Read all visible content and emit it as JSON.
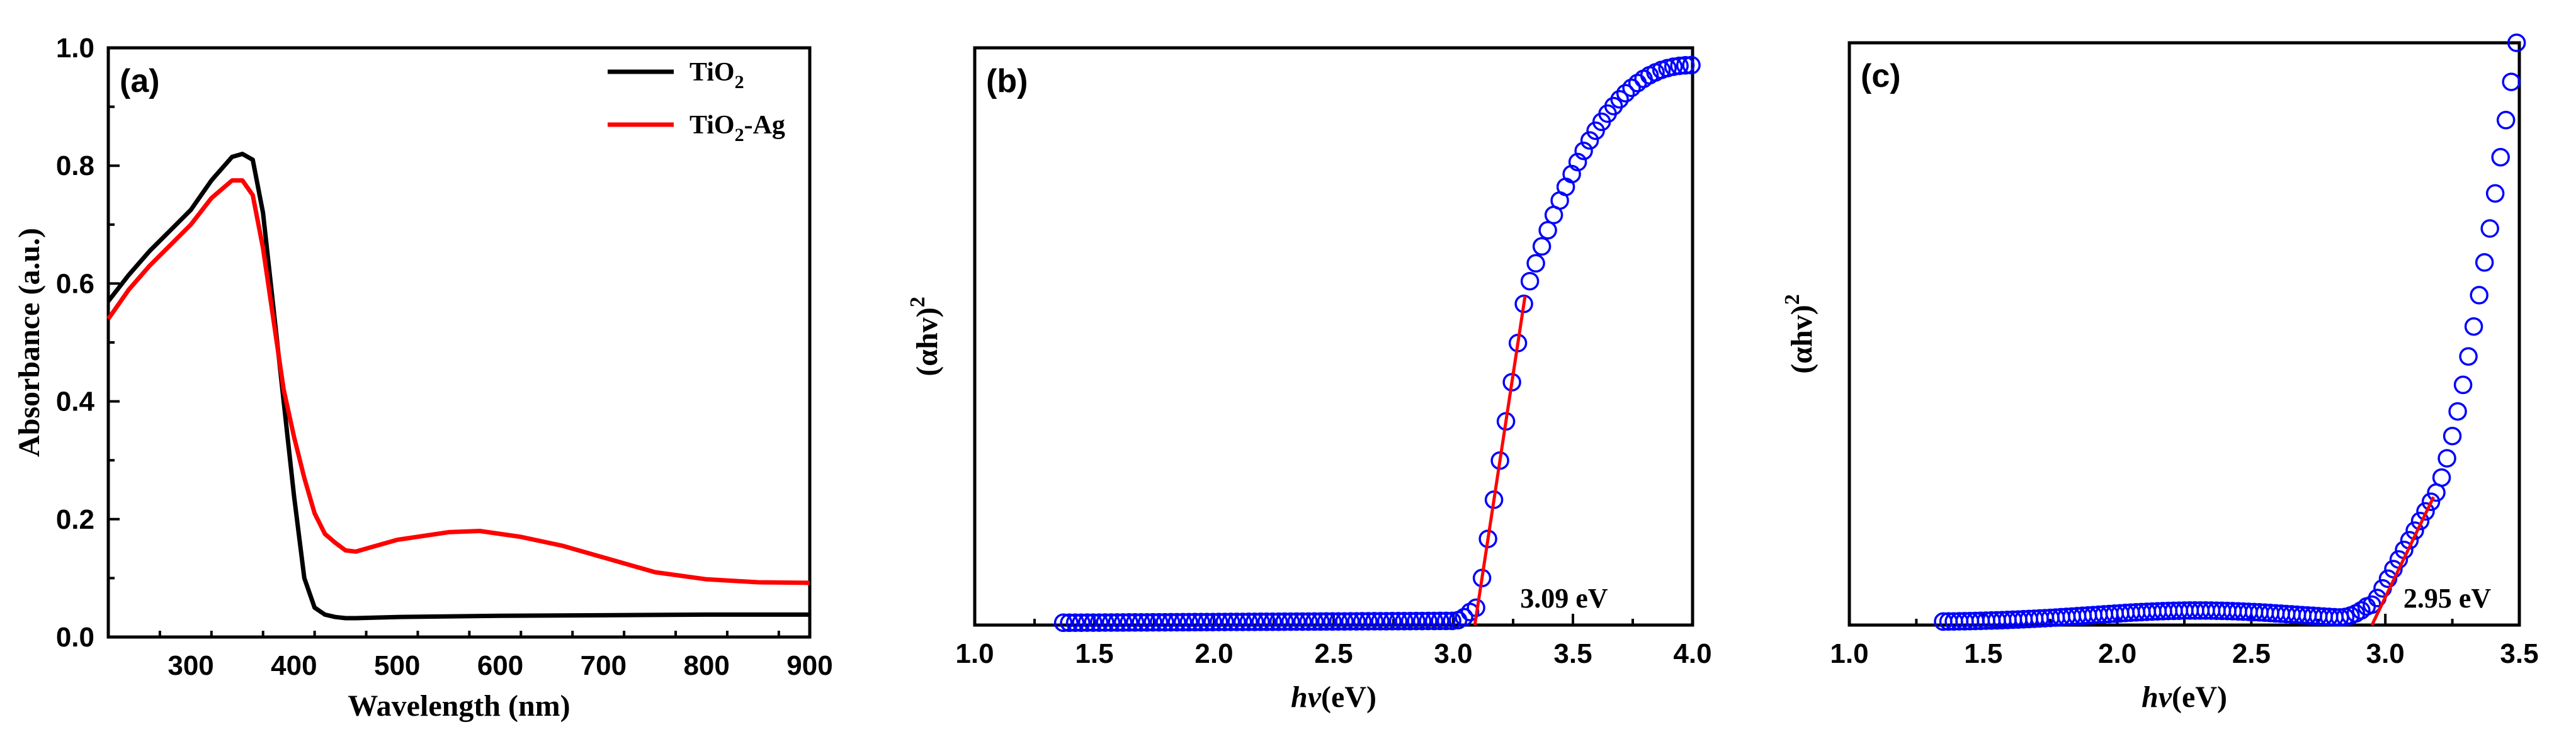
{
  "chart_data": [
    {
      "type": "line",
      "panel_label": "(a)",
      "xlabel": "Wavelength (nm)",
      "ylabel": "Absorbance (a.u.)",
      "xlim": [
        220,
        900
      ],
      "ylim": [
        0.0,
        1.0
      ],
      "xticks": [
        300,
        400,
        500,
        600,
        700,
        800,
        900
      ],
      "xtick_labels": [
        "300",
        "400",
        "500",
        "600",
        "700",
        "800",
        "900"
      ],
      "yticks": [
        0.0,
        0.2,
        0.4,
        0.6,
        0.8,
        1.0
      ],
      "ytick_labels": [
        "0.0",
        "0.2",
        "0.4",
        "0.6",
        "0.8",
        "1.0"
      ],
      "legend_position": "top-right",
      "series": [
        {
          "name": "TiO2",
          "legend_main": "TiO",
          "legend_sub": "2",
          "legend_suffix": "",
          "color": "#000000",
          "x": [
            220,
            240,
            260,
            280,
            300,
            320,
            340,
            350,
            360,
            370,
            380,
            390,
            400,
            410,
            420,
            430,
            440,
            450,
            460,
            480,
            500,
            600,
            700,
            800,
            900
          ],
          "y": [
            0.57,
            0.615,
            0.655,
            0.69,
            0.725,
            0.775,
            0.815,
            0.82,
            0.81,
            0.72,
            0.56,
            0.4,
            0.24,
            0.1,
            0.05,
            0.038,
            0.034,
            0.032,
            0.032,
            0.033,
            0.034,
            0.036,
            0.037,
            0.038,
            0.038
          ]
        },
        {
          "name": "TiO2-Ag",
          "legend_main": "TiO",
          "legend_sub": "2",
          "legend_suffix": "-Ag",
          "color": "#ff0000",
          "x": [
            220,
            240,
            260,
            280,
            300,
            320,
            340,
            350,
            360,
            370,
            380,
            390,
            400,
            410,
            420,
            430,
            440,
            450,
            460,
            480,
            500,
            550,
            580,
            620,
            660,
            700,
            750,
            800,
            850,
            900
          ],
          "y": [
            0.54,
            0.59,
            0.63,
            0.665,
            0.7,
            0.745,
            0.775,
            0.775,
            0.75,
            0.66,
            0.54,
            0.42,
            0.34,
            0.27,
            0.21,
            0.175,
            0.16,
            0.147,
            0.145,
            0.155,
            0.165,
            0.178,
            0.18,
            0.17,
            0.155,
            0.135,
            0.11,
            0.098,
            0.093,
            0.092
          ]
        }
      ]
    },
    {
      "type": "scatter",
      "panel_label": "(b)",
      "xlabel_italic": "hv",
      "xlabel_rest": "(eV)",
      "ylabel_main": "(αhv)",
      "ylabel_sup": "2",
      "xlim": [
        1.0,
        4.0
      ],
      "ylim": [
        0.0,
        1.0
      ],
      "xticks": [
        1.0,
        1.5,
        2.0,
        2.5,
        3.0,
        3.5,
        4.0
      ],
      "xtick_labels": [
        "1.0",
        "1.5",
        "2.0",
        "2.5",
        "3.0",
        "3.5",
        "4.0"
      ],
      "marker_color": "#0000ff",
      "fit_color": "#ff0000",
      "bandgap_eV": 3.09,
      "annotation": "3.09 eV",
      "x_start": 1.37,
      "x_end": 4.0,
      "x_step": 0.025,
      "fit_line": {
        "x": [
          3.09,
          3.3
        ],
        "y": [
          0.0,
          0.57
        ]
      }
    },
    {
      "type": "scatter",
      "panel_label": "(c)",
      "xlabel_italic": "hv",
      "xlabel_rest": "(eV)",
      "ylabel_main": "(αhv)",
      "ylabel_sup": "2",
      "xlim": [
        1.0,
        3.5
      ],
      "ylim": [
        0.0,
        1.0
      ],
      "xticks": [
        1.0,
        1.5,
        2.0,
        2.5,
        3.0,
        3.5
      ],
      "xtick_labels": [
        "1.0",
        "1.5",
        "2.0",
        "2.5",
        "3.0",
        "3.5"
      ],
      "marker_color": "#0000ff",
      "fit_color": "#ff0000",
      "bandgap_eV": 2.95,
      "annotation": "2.95 eV",
      "x_start": 1.35,
      "x_end": 3.5,
      "x_step": 0.02,
      "fit_line": {
        "x": [
          2.95,
          3.18
        ],
        "y": [
          0.0,
          0.22
        ]
      }
    }
  ]
}
